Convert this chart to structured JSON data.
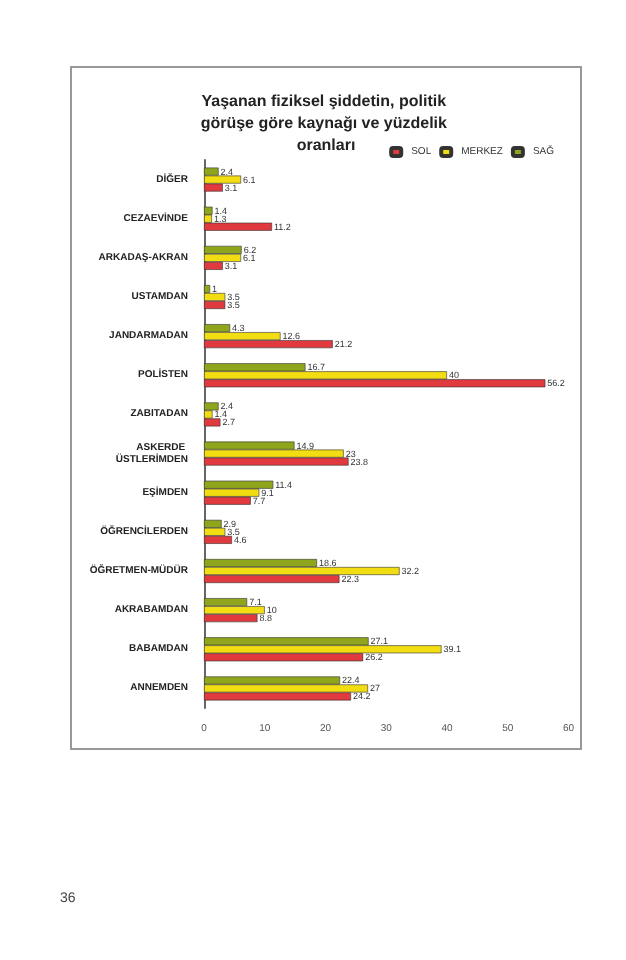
{
  "chart_data": {
    "type": "bar",
    "orientation": "horizontal",
    "title": "Yaşanan fiziksel şiddetin, politik görüşe göre kaynağı ve yüzdelik oranları",
    "categories": [
      "DİĞER",
      "CEZAEVİNDE",
      "ARKADAŞ-AKRAN",
      "USTAMDAN",
      "JANDARMADAN",
      "POLİSTEN",
      "ZABITADAN",
      "ASKERDE ÜSTLERİMDEN",
      "EŞİMDEN",
      "ÖĞRENCİLERDEN",
      "ÖĞRETMEN-MÜDÜR",
      "AKRABAMDAN",
      "BABAMDAN",
      "ANNEMDEN"
    ],
    "series": [
      {
        "name": "SAĞ",
        "color": "#8fa61c",
        "values": [
          2.4,
          1.4,
          6.2,
          1,
          4.3,
          16.7,
          2.4,
          14.9,
          11.4,
          2.9,
          18.6,
          7.1,
          27.1,
          22.4
        ]
      },
      {
        "name": "MERKEZ",
        "color": "#f2dc12",
        "values": [
          6.1,
          1.3,
          6.1,
          3.5,
          12.6,
          40,
          1.4,
          23,
          9.1,
          3.5,
          32.2,
          10,
          39.1,
          27
        ]
      },
      {
        "name": "SOL",
        "color": "#e0393e",
        "values": [
          3.1,
          11.2,
          3.1,
          3.5,
          21.2,
          56.2,
          2.7,
          23.8,
          7.7,
          4.6,
          22.3,
          8.8,
          26.2,
          24.2
        ]
      }
    ],
    "xlim": [
      0,
      60
    ],
    "xticks": [
      0,
      10,
      20,
      30,
      40,
      50,
      60
    ],
    "data_labels": true,
    "legend": "top right",
    "grid": false,
    "annotations": [
      "36"
    ]
  }
}
